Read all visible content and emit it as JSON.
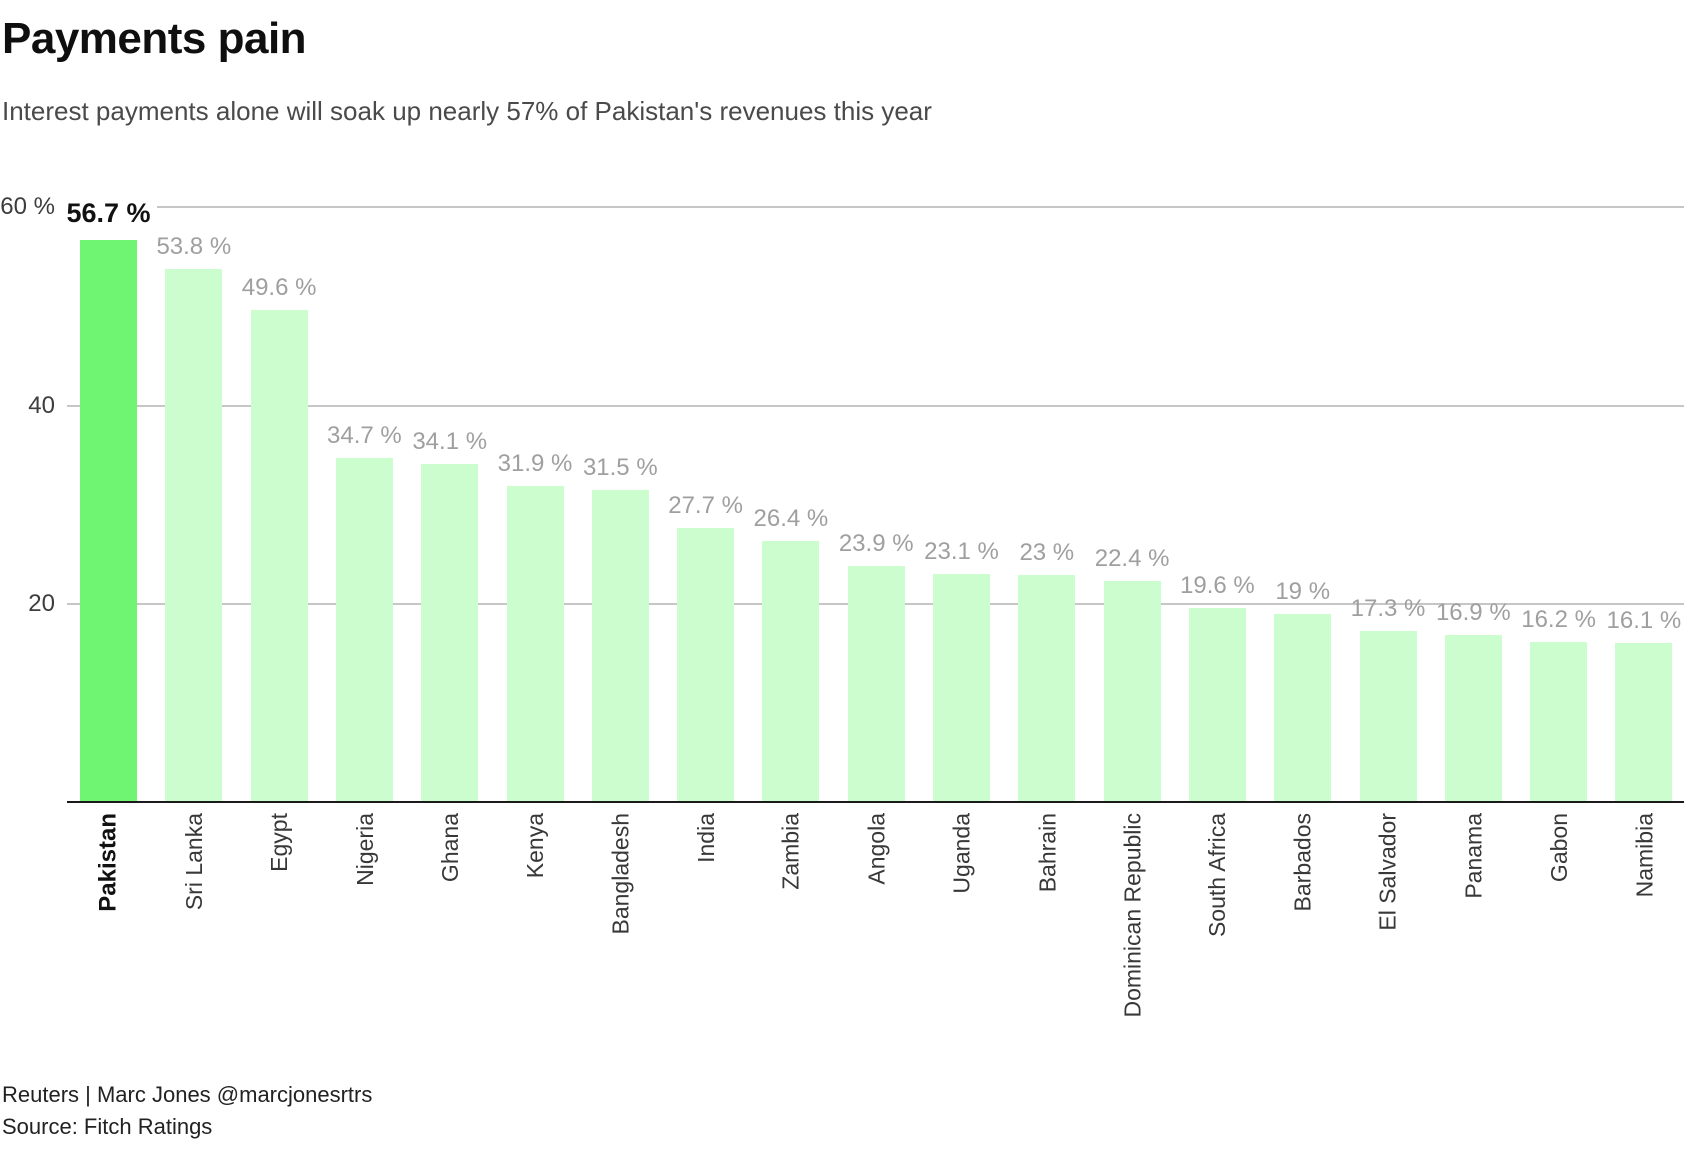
{
  "header": {
    "title": "Payments pain",
    "subtitle": "Interest payments alone will soak up nearly 57% of Pakistan's revenues this year"
  },
  "footer": {
    "credit": "Reuters | Marc Jones @marcjonesrtrs",
    "source": "Source: Fitch Ratings"
  },
  "chart_data": {
    "type": "bar",
    "title": "Payments pain",
    "subtitle": "Interest payments alone will soak up nearly 57% of Pakistan's revenues this year",
    "categories": [
      "Pakistan",
      "Sri Lanka",
      "Egypt",
      "Nigeria",
      "Ghana",
      "Kenya",
      "Bangladesh",
      "India",
      "Zambia",
      "Angola",
      "Uganda",
      "Bahrain",
      "Dominican Republic",
      "South Africa",
      "Barbados",
      "El Salvador",
      "Panama",
      "Gabon",
      "Namibia"
    ],
    "values": [
      56.7,
      53.8,
      49.6,
      34.7,
      34.1,
      31.9,
      31.5,
      27.7,
      26.4,
      23.9,
      23.1,
      23,
      22.4,
      19.6,
      19,
      17.3,
      16.9,
      16.2,
      16.1
    ],
    "value_labels": [
      "56.7 %",
      "53.8 %",
      "49.6 %",
      "34.7 %",
      "34.1 %",
      "31.9 %",
      "31.5 %",
      "27.7 %",
      "26.4 %",
      "23.9 %",
      "23.1 %",
      "23 %",
      "22.4 %",
      "19.6 %",
      "19 %",
      "17.3 %",
      "16.9 %",
      "16.2 %",
      "16.1 %"
    ],
    "xlabel": "",
    "ylabel": "",
    "ylim": [
      0,
      60
    ],
    "yticks": [
      {
        "value": 60,
        "label": "60 %"
      },
      {
        "value": 40,
        "label": "40"
      },
      {
        "value": 20,
        "label": "20"
      }
    ],
    "grid": true,
    "legend_position": "none",
    "highlight_index": 0,
    "highlight_color": "#70f573",
    "bar_color": "#ccfdcf",
    "gridline_color": "#c6c6c6",
    "axis_color": "#1a1a1a",
    "value_label_color": "#9f9f9f",
    "highlight_label_color": "#111111"
  }
}
